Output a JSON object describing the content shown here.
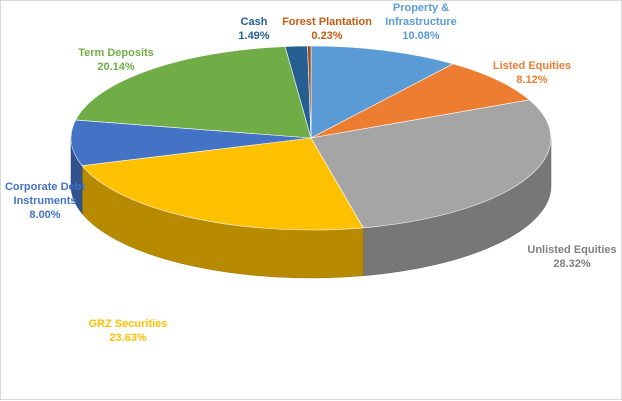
{
  "chart_data": {
    "type": "pie",
    "title": "",
    "legend": "none",
    "start_category": "Property & Infrastructure",
    "slices": [
      {
        "name": "Property & Infrastructure",
        "label_lines": [
          "Property &",
          "Infrastructure"
        ],
        "value": 10.08,
        "value_label": "10.08%",
        "color": "#5b9bd5"
      },
      {
        "name": "Listed Equities",
        "label_lines": [
          "Listed Equities"
        ],
        "value": 8.12,
        "value_label": "8.12%",
        "color": "#ed7d31"
      },
      {
        "name": "Unlisted Equities",
        "label_lines": [
          "Unlisted Equities"
        ],
        "value": 28.32,
        "value_label": "28.32%",
        "color": "#a5a5a5"
      },
      {
        "name": "GRZ Securities",
        "label_lines": [
          "GRZ Securities"
        ],
        "value": 23.63,
        "value_label": "23.63%",
        "color": "#ffc000"
      },
      {
        "name": "Corporate Debt Instruments",
        "label_lines": [
          "Corporate Debt",
          "Instruments"
        ],
        "value": 8.0,
        "value_label": "8.00%",
        "color": "#4472c4"
      },
      {
        "name": "Term Deposits",
        "label_lines": [
          "Term Deposits"
        ],
        "value": 20.14,
        "value_label": "20.14%",
        "color": "#70ad47"
      },
      {
        "name": "Cash",
        "label_lines": [
          "Cash"
        ],
        "value": 1.49,
        "value_label": "1.49%",
        "color": "#255e91"
      },
      {
        "name": "Forest Plantation",
        "label_lines": [
          "Forest Plantation"
        ],
        "value": 0.23,
        "value_label": "0.23%",
        "color": "#9e480e"
      }
    ]
  }
}
